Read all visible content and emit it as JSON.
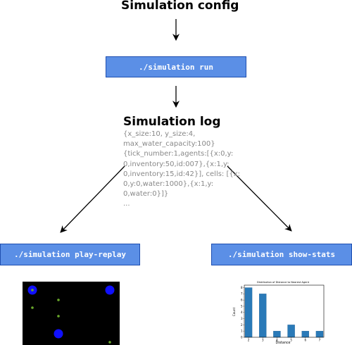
{
  "config_title": "Simulation config",
  "run_command": "./simulation run",
  "log_title": "Simulation log",
  "log_lines": [
    "{x_size:10, y_size:4,",
    "max_water_capacity:100}",
    "{tick_number:1,agents:[{x:0,y:",
    "0,inventory:50,id:007},{x:1,y:",
    "0,inventory:15,id:42}], cells: [{x:",
    "0,y:0,water:1000},{x:1,y:",
    "0,water:0}]}",
    "..."
  ],
  "replay_command": "./simulation play-replay",
  "stats_command": "./simulation show-stats",
  "colors": {
    "button_fill": "#5b8fe6",
    "button_border": "#1f4fb0",
    "agent": "#1010ff",
    "cell": "#6aa82a",
    "bar": "#2a7ab8"
  },
  "replay_preview": {
    "agents": 3,
    "cells": 5
  },
  "chart_data": {
    "type": "bar",
    "title": "Distribution of Distance to Nearest Agent",
    "xlabel": "Distance",
    "ylabel": "Count",
    "x": [
      2,
      3,
      4,
      5,
      6,
      7
    ],
    "values": [
      8,
      7,
      1,
      2,
      1,
      1
    ],
    "xticks": [
      "2",
      "3",
      "4",
      "5",
      "6",
      "7"
    ],
    "yticks": [
      "0",
      "1",
      "2",
      "3",
      "4",
      "5",
      "6",
      "7",
      "8"
    ],
    "ylim": [
      0,
      8.4
    ]
  }
}
